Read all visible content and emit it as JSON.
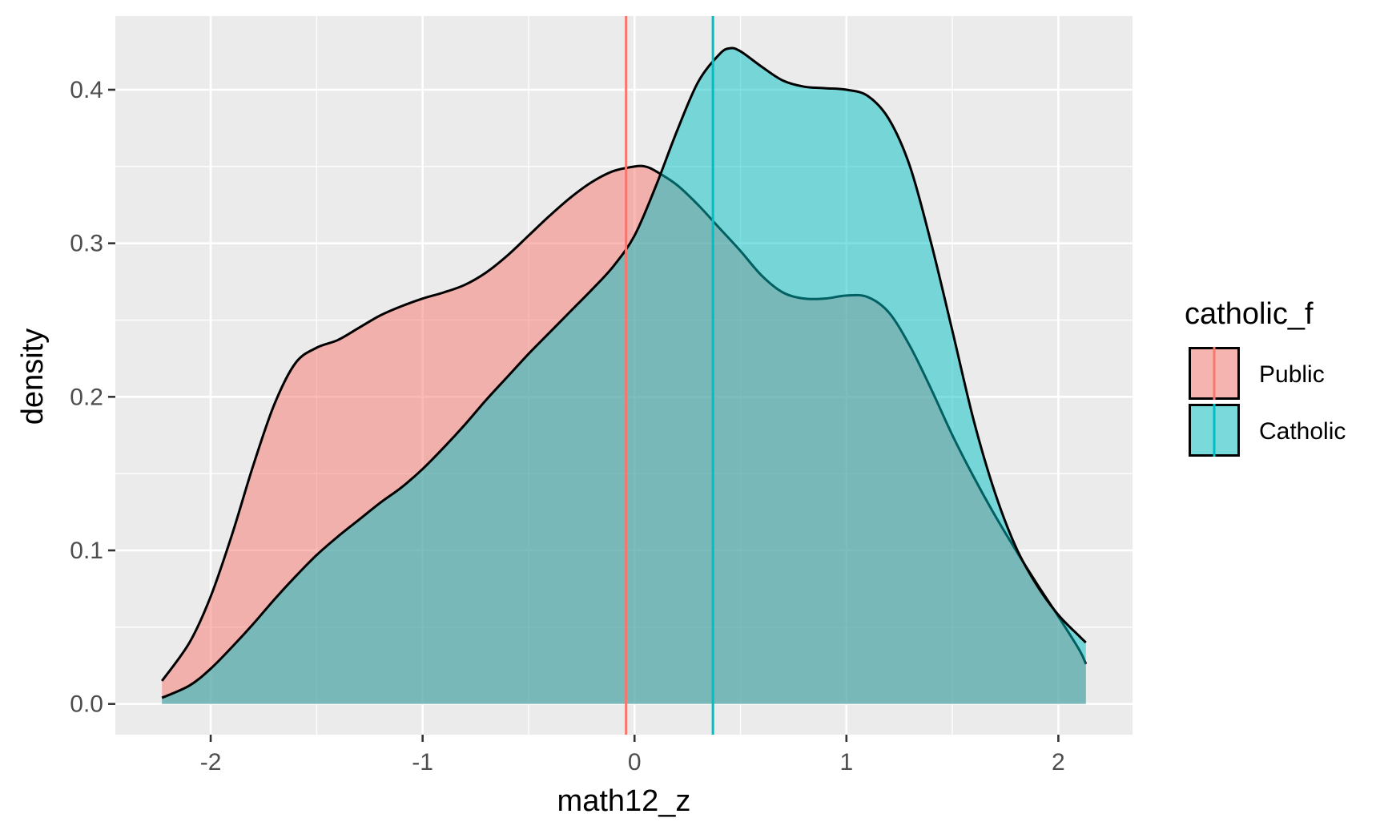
{
  "chart_data": {
    "type": "area",
    "xlabel": "math12_z",
    "ylabel": "density",
    "xlim": [
      -2.45,
      2.35
    ],
    "ylim": [
      -0.02,
      0.448
    ],
    "x_ticks": [
      -2,
      -1,
      0,
      1,
      2
    ],
    "x_tick_labels": [
      "-2",
      "-1",
      "0",
      "1",
      "2"
    ],
    "y_ticks": [
      0.0,
      0.1,
      0.2,
      0.3,
      0.4
    ],
    "y_tick_labels": [
      "0.0",
      "0.1",
      "0.2",
      "0.3",
      "0.4"
    ],
    "grid": true,
    "legend": {
      "title": "catholic_f",
      "placement": "right",
      "entries": [
        "Public",
        "Catholic"
      ]
    },
    "series": [
      {
        "name": "Public",
        "color": "#F8766D",
        "mean": -0.04,
        "x": [
          -2.23,
          -2.1,
          -2.0,
          -1.9,
          -1.8,
          -1.7,
          -1.6,
          -1.5,
          -1.4,
          -1.3,
          -1.2,
          -1.1,
          -1.0,
          -0.9,
          -0.8,
          -0.7,
          -0.6,
          -0.5,
          -0.4,
          -0.3,
          -0.2,
          -0.1,
          0.0,
          0.05,
          0.1,
          0.2,
          0.3,
          0.4,
          0.5,
          0.6,
          0.7,
          0.8,
          0.9,
          1.0,
          1.1,
          1.2,
          1.3,
          1.4,
          1.5,
          1.6,
          1.7,
          1.8,
          1.9,
          2.0,
          2.1,
          2.13
        ],
        "y": [
          0.015,
          0.04,
          0.07,
          0.11,
          0.155,
          0.195,
          0.222,
          0.232,
          0.237,
          0.245,
          0.253,
          0.259,
          0.264,
          0.268,
          0.273,
          0.281,
          0.292,
          0.305,
          0.318,
          0.33,
          0.34,
          0.347,
          0.35,
          0.35,
          0.347,
          0.338,
          0.325,
          0.31,
          0.295,
          0.279,
          0.268,
          0.264,
          0.264,
          0.266,
          0.265,
          0.255,
          0.233,
          0.205,
          0.175,
          0.148,
          0.123,
          0.1,
          0.078,
          0.057,
          0.035,
          0.026
        ]
      },
      {
        "name": "Catholic",
        "color": "#00BFC4",
        "mean": 0.37,
        "x": [
          -2.23,
          -2.1,
          -2.0,
          -1.9,
          -1.8,
          -1.7,
          -1.6,
          -1.5,
          -1.4,
          -1.3,
          -1.2,
          -1.1,
          -1.0,
          -0.9,
          -0.8,
          -0.7,
          -0.6,
          -0.5,
          -0.4,
          -0.3,
          -0.2,
          -0.1,
          0.0,
          0.1,
          0.2,
          0.3,
          0.4,
          0.45,
          0.5,
          0.6,
          0.7,
          0.8,
          0.9,
          1.0,
          1.1,
          1.2,
          1.3,
          1.4,
          1.5,
          1.6,
          1.7,
          1.8,
          1.9,
          2.0,
          2.1,
          2.13
        ],
        "y": [
          0.004,
          0.012,
          0.023,
          0.037,
          0.052,
          0.068,
          0.083,
          0.097,
          0.109,
          0.12,
          0.131,
          0.141,
          0.153,
          0.167,
          0.182,
          0.198,
          0.213,
          0.228,
          0.242,
          0.256,
          0.27,
          0.285,
          0.305,
          0.337,
          0.373,
          0.405,
          0.423,
          0.427,
          0.425,
          0.415,
          0.406,
          0.402,
          0.401,
          0.4,
          0.396,
          0.381,
          0.35,
          0.3,
          0.243,
          0.185,
          0.138,
          0.102,
          0.077,
          0.058,
          0.044,
          0.04
        ]
      }
    ]
  }
}
